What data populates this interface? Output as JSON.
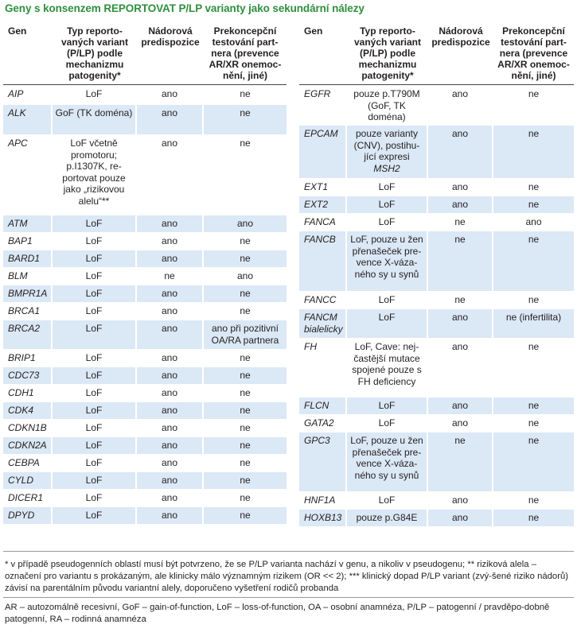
{
  "title": "Geny s konsenzem REPORTOVAT P/LP varianty jako sekundární nálezy",
  "headers": {
    "gen": "Gen",
    "typ": "Typ reporto-vaných variant (P/LP) podle mechanizmu patogenity*",
    "nador": "Nádorová predispozice",
    "prekon": "Prekoncepční testování part-nera (prevence AR/XR onemoc-nění, jiné)"
  },
  "left_rows": [
    {
      "gen": "AIP",
      "typ": "LoF",
      "nador": "ano",
      "prekon": "ne",
      "h": 24
    },
    {
      "gen": "ALK",
      "typ": "GoF (TK doména)",
      "nador": "ano",
      "prekon": "ne",
      "h": 38
    },
    {
      "gen": "APC",
      "typ": "LoF včetně promotoru; p.I1307K, re-portovat pouze jako „rizikovou alelu“**",
      "nador": "ano",
      "prekon": "ne",
      "h": 101
    },
    {
      "gen": "ATM",
      "typ": "LoF",
      "nador": "ano",
      "prekon": "ano",
      "h": 22
    },
    {
      "gen": "BAP1",
      "typ": "LoF",
      "nador": "ano",
      "prekon": "ne",
      "h": 22
    },
    {
      "gen": "BARD1",
      "typ": "LoF",
      "nador": "ano",
      "prekon": "ne",
      "h": 22
    },
    {
      "gen": "BLM",
      "typ": "LoF",
      "nador": "ne",
      "prekon": "ano",
      "h": 22
    },
    {
      "gen": "BMPR1A",
      "typ": "LoF",
      "nador": "ano",
      "prekon": "ne",
      "h": 22
    },
    {
      "gen": "BRCA1",
      "typ": "LoF",
      "nador": "ano",
      "prekon": "ne",
      "h": 22
    },
    {
      "gen": "BRCA2",
      "typ": "LoF",
      "nador": "ano",
      "prekon": "ano při pozitivní OA/RA partnera",
      "h": 37
    },
    {
      "gen": "BRIP1",
      "typ": "LoF",
      "nador": "ano",
      "prekon": "ne",
      "h": 22
    },
    {
      "gen": "CDC73",
      "typ": "LoF",
      "nador": "ano",
      "prekon": "ne",
      "h": 22
    },
    {
      "gen": "CDH1",
      "typ": "LoF",
      "nador": "ano",
      "prekon": "ne",
      "h": 22
    },
    {
      "gen": "CDK4",
      "typ": "LoF",
      "nador": "ano",
      "prekon": "ne",
      "h": 22
    },
    {
      "gen": "CDKN1B",
      "typ": "LoF",
      "nador": "ano",
      "prekon": "ne",
      "h": 22
    },
    {
      "gen": "CDKN2A",
      "typ": "LoF",
      "nador": "ano",
      "prekon": "ne",
      "h": 22
    },
    {
      "gen": "CEBPA",
      "typ": "LoF",
      "nador": "ano",
      "prekon": "ne",
      "h": 22
    },
    {
      "gen": "CYLD",
      "typ": "LoF",
      "nador": "ano",
      "prekon": "ne",
      "h": 22
    },
    {
      "gen": "DICER1",
      "typ": "LoF",
      "nador": "ano",
      "prekon": "ne",
      "h": 22
    },
    {
      "gen": "DPYD",
      "typ": "LoF",
      "nador": "ano",
      "prekon": "ne",
      "h": 22
    }
  ],
  "right_rows": [
    {
      "gen": "EGFR",
      "typ": "pouze p.T790M (GoF, TK doména)",
      "nador": "ano",
      "prekon": "ne",
      "h": 50
    },
    {
      "gen": "EPCAM",
      "typ": "pouze varianty (CNV), postihu-jící expresi MSH2",
      "typ_em": "MSH2",
      "nador": "ano",
      "prekon": "ne",
      "h": 67
    },
    {
      "gen": "EXT1",
      "typ": "LoF",
      "nador": "ano",
      "prekon": "ne",
      "h": 22
    },
    {
      "gen": "EXT2",
      "typ": "LoF",
      "nador": "ano",
      "prekon": "ne",
      "h": 22
    },
    {
      "gen": "FANCA",
      "typ": "LoF",
      "nador": "ne",
      "prekon": "ano",
      "h": 22
    },
    {
      "gen": "FANCB",
      "typ": "LoF, pouze u žen přenašeček pre-vence X-váza-ného sy u synů",
      "nador": "ne",
      "prekon": "ne",
      "h": 76
    },
    {
      "gen": "FANCC",
      "typ": "LoF",
      "nador": "ne",
      "prekon": "ne",
      "h": 22
    },
    {
      "gen": "FANCM bialelicky",
      "typ": "LoF",
      "nador": "ano",
      "prekon": "ne (infertilita)",
      "h": 37
    },
    {
      "gen": "FH",
      "typ": "LoF, Cave: nej-častější mutace spojené pouze s FH deficiency",
      "nador": "ano",
      "prekon": "ne",
      "h": 74
    },
    {
      "gen": "FLCN",
      "typ": "LoF",
      "nador": "ano",
      "prekon": "ne",
      "h": 22
    },
    {
      "gen": "GATA2",
      "typ": "LoF",
      "nador": "ano",
      "prekon": "ne",
      "h": 22
    },
    {
      "gen": "GPC3",
      "typ": "LoF, pouze u žen přenašeček pre-vence X-váza-ného sy u synů",
      "nador": "ne",
      "prekon": "ne",
      "h": 75
    },
    {
      "gen": "HNF1A",
      "typ": "LoF",
      "nador": "ano",
      "prekon": "ne",
      "h": 22
    },
    {
      "gen": "HOXB13",
      "typ": "pouze p.G84E",
      "nador": "ano",
      "prekon": "ne",
      "h": 22
    }
  ],
  "footnote": "* v případě pseudogenních oblastí musí být potvrzeno, že se P/LP varianta nachází v genu, a nikoliv v pseudogenu; ** riziková alela – označení pro variantu s prokázaným, ale klinicky málo významným rizikem (OR << 2); *** klinický dopad P/LP variant (zvý-šené riziko nádorů) závisí na parentálním původu variantní alely, doporučeno vyšetření rodičů probanda",
  "abbreviations": "AR – autozomálně recesivní, GoF – gain-of-function, LoF – loss-of-function, OA – osobní anamnéza, P/LP – patogenní / pravděpo-dobně patogenní, RA – rodinná anamnéza"
}
